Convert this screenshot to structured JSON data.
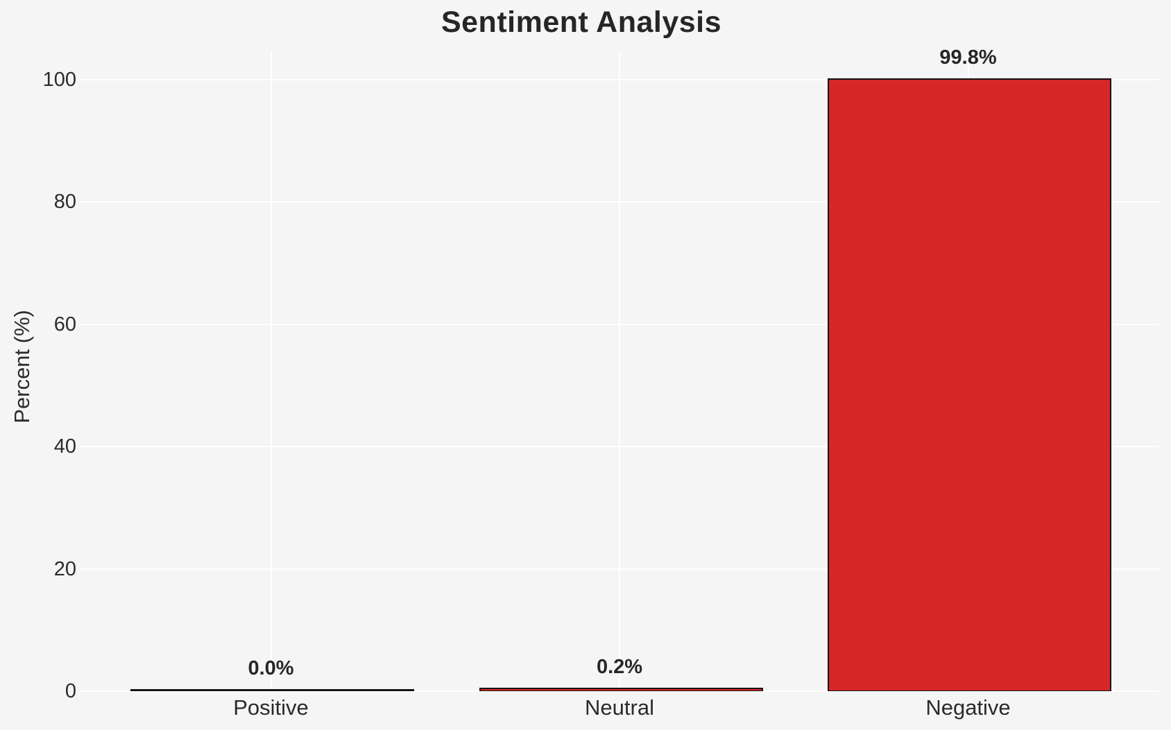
{
  "title": "Sentiment Analysis",
  "chart_data": {
    "type": "bar",
    "title": "Sentiment Analysis",
    "xlabel": "",
    "ylabel": "Percent (%)",
    "categories": [
      "Positive",
      "Neutral",
      "Negative"
    ],
    "values": [
      0.0,
      0.2,
      99.8
    ],
    "bar_labels": [
      "0.0%",
      "0.2%",
      "99.8%"
    ],
    "yticks": [
      0,
      20,
      40,
      60,
      80,
      100
    ],
    "ylim": [
      0,
      104.8
    ],
    "grid": "horizontal and vertical white gridlines on light gray background",
    "legend": "none",
    "colors": {
      "bar_fill": "#d62728",
      "bar_edge": "#141414",
      "background": "#f5f5f6",
      "gridline": "#ffffff",
      "text": "#262626"
    }
  }
}
